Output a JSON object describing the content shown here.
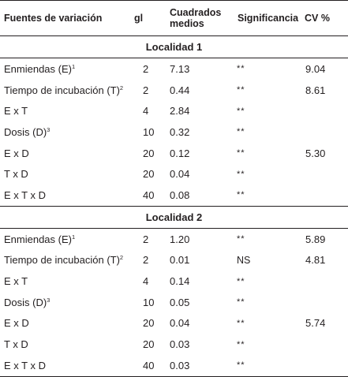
{
  "header": {
    "col1": "Fuentes de variación",
    "col2": "gl",
    "col3": "Cuadrados medios",
    "col4": "Significancia",
    "col5": "CV %"
  },
  "sections": [
    {
      "title": "Localidad 1",
      "rows": [
        {
          "source": "Enmiendas (E)",
          "sup": "1",
          "gl": "2",
          "cm": "7.13",
          "sig": "**",
          "cv": "9.04"
        },
        {
          "source": "Tiempo de incubación (T)",
          "sup": "2",
          "gl": "2",
          "cm": "0.44",
          "sig": "**",
          "cv": "8.61"
        },
        {
          "source": "E x T",
          "sup": "",
          "gl": "4",
          "cm": "2.84",
          "sig": "**",
          "cv": ""
        },
        {
          "source": "Dosis (D)",
          "sup": "3",
          "gl": "10",
          "cm": "0.32",
          "sig": "**",
          "cv": ""
        },
        {
          "source": "E x D",
          "sup": "",
          "gl": "20",
          "cm": "0.12",
          "sig": "**",
          "cv": "5.30"
        },
        {
          "source": "T x D",
          "sup": "",
          "gl": "20",
          "cm": "0.04",
          "sig": "**",
          "cv": ""
        },
        {
          "source": "E x T x D",
          "sup": "",
          "gl": "40",
          "cm": "0.08",
          "sig": "**",
          "cv": ""
        }
      ]
    },
    {
      "title": "Localidad 2",
      "rows": [
        {
          "source": "Enmiendas (E)",
          "sup": "1",
          "gl": "2",
          "cm": "1.20",
          "sig": "**",
          "cv": "5.89"
        },
        {
          "source": "Tiempo de incubación (T)",
          "sup": "2",
          "gl": "2",
          "cm": "0.01",
          "sig": "NS",
          "cv": "4.81"
        },
        {
          "source": "E x T",
          "sup": "",
          "gl": "4",
          "cm": "0.14",
          "sig": "**",
          "cv": ""
        },
        {
          "source": "Dosis (D)",
          "sup": "3",
          "gl": "10",
          "cm": "0.05",
          "sig": "**",
          "cv": ""
        },
        {
          "source": "E x D",
          "sup": "",
          "gl": "20",
          "cm": "0.04",
          "sig": "**",
          "cv": "5.74"
        },
        {
          "source": "T x D",
          "sup": "",
          "gl": "20",
          "cm": "0.03",
          "sig": "**",
          "cv": ""
        },
        {
          "source": "E x T x D",
          "sup": "",
          "gl": "40",
          "cm": "0.03",
          "sig": "**",
          "cv": ""
        }
      ]
    }
  ]
}
